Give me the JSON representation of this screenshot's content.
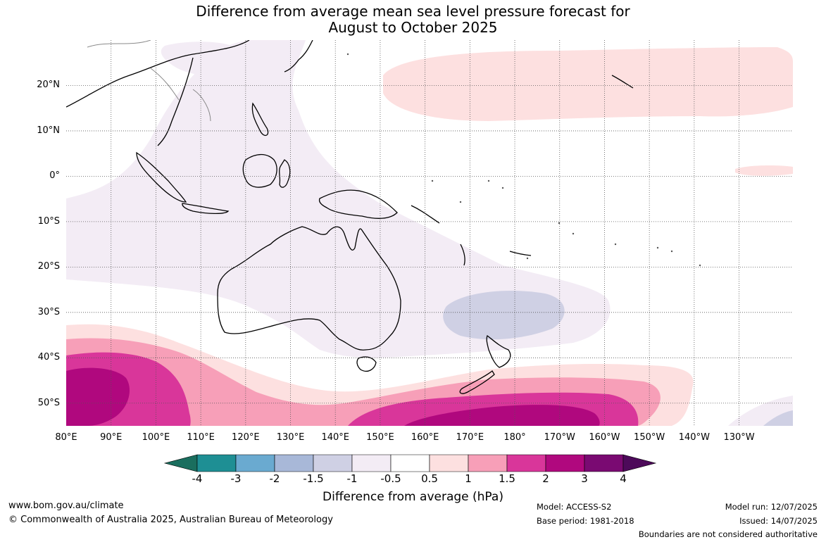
{
  "title": {
    "line1": "Difference from average mean sea level pressure forecast for",
    "line2": "August to October 2025"
  },
  "map": {
    "extent": {
      "lon_min": 80,
      "lon_max": 242,
      "lat_min": -55,
      "lat_max": 30
    },
    "latitude_labels": [
      "20°N",
      "10°N",
      "0°",
      "10°S",
      "20°S",
      "30°S",
      "40°S",
      "50°S"
    ],
    "longitude_labels": [
      "80°E",
      "90°E",
      "100°E",
      "110°E",
      "120°E",
      "130°E",
      "140°E",
      "150°E",
      "160°E",
      "170°E",
      "180°",
      "170°W",
      "160°W",
      "150°W",
      "140°W",
      "130°W"
    ],
    "gridlines": "dotted",
    "colors": {
      "land_outline": "#000000",
      "neighbour_outline": "#8a8a8a"
    }
  },
  "colorbar": {
    "tick_labels": [
      "-4",
      "-3",
      "-2",
      "-1.5",
      "-1",
      "-0.5",
      "0.5",
      "1",
      "1.5",
      "2",
      "3",
      "4"
    ],
    "colors": [
      "#1a6e5e",
      "#1e8f94",
      "#6aaad0",
      "#a8b8d8",
      "#cfd0e4",
      "#f3ecf5",
      "#ffffff",
      "#fde0e0",
      "#f79fb8",
      "#d9369a",
      "#b0087e",
      "#7a0a72",
      "#4d0a5a"
    ],
    "label": "Difference from average (hPa)"
  },
  "footer": {
    "website": "www.bom.gov.au/climate",
    "copyright": "© Commonwealth of Australia 2025, Australian Bureau of Meteorology",
    "model": "Model: ACCESS-S2",
    "base_period": "Base period: 1981-2018",
    "model_run": "Model run: 12/07/2025",
    "issued": "Issued: 14/07/2025",
    "disclaimer": "Boundaries are not considered authoritative"
  }
}
